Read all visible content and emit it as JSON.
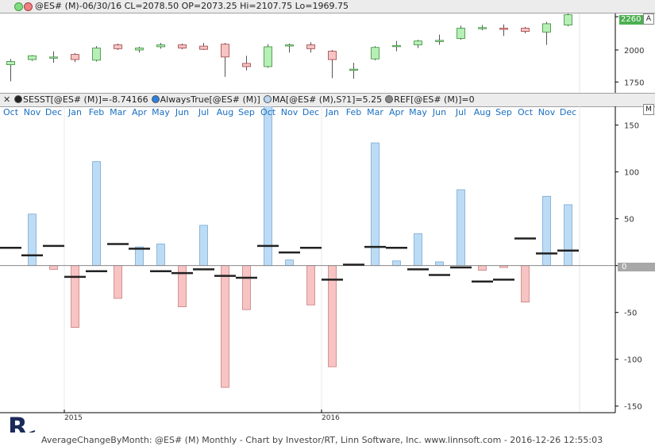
{
  "top_panel": {
    "title": "@ES# (M)-06/30/16 CL=2078.50 OP=2073.25 Hi=2107.75 Lo=1969.75",
    "price_badge": "2260",
    "corner_label": "A",
    "dot_colors": [
      "#7fdc7f",
      "#f08080"
    ]
  },
  "indicator_panel": {
    "legend": [
      {
        "text": "SESST[@ES# (M)]=-8.74166",
        "color": "#222222"
      },
      {
        "text": "AlwaysTrue[@ES# (M)]",
        "color": "#2f7fdc"
      },
      {
        "text": "MA[@ES# (M),S?1]=5.25",
        "color": "#b8d8f4"
      },
      {
        "text": "REF[@ES# (M)]=0",
        "color": "#888888"
      }
    ],
    "corner_label": "M",
    "zero_badge": "0"
  },
  "footer": {
    "text": "AverageChangeByMonth: @ES# (M) Monthly - Chart by Investor/RT, Linn Software, Inc. www.linnsoft.com - 2016-12-26 12:55:03"
  },
  "chart_data": [
    {
      "type": "candlestick",
      "y_ticks": [
        1750,
        2000,
        2260
      ],
      "ylim": [
        1665,
        2285
      ],
      "candles": [
        {
          "o": 1885,
          "h": 1930,
          "l": 1755,
          "c": 1910
        },
        {
          "o": 1925,
          "h": 1960,
          "l": 1915,
          "c": 1955
        },
        {
          "o": 1945,
          "h": 1990,
          "l": 1900,
          "c": 1945
        },
        {
          "o": 1965,
          "h": 1975,
          "l": 1905,
          "c": 1925
        },
        {
          "o": 1920,
          "h": 2030,
          "l": 1910,
          "c": 2015
        },
        {
          "o": 2040,
          "h": 2050,
          "l": 2000,
          "c": 2010
        },
        {
          "o": 2000,
          "h": 2025,
          "l": 1980,
          "c": 2015
        },
        {
          "o": 2025,
          "h": 2055,
          "l": 2010,
          "c": 2040
        },
        {
          "o": 2040,
          "h": 2050,
          "l": 2005,
          "c": 2015
        },
        {
          "o": 2030,
          "h": 2055,
          "l": 2000,
          "c": 2005
        },
        {
          "o": 2045,
          "h": 2055,
          "l": 1790,
          "c": 1945
        },
        {
          "o": 1895,
          "h": 1955,
          "l": 1840,
          "c": 1870
        },
        {
          "o": 1870,
          "h": 2045,
          "l": 1860,
          "c": 2025
        },
        {
          "o": 2040,
          "h": 2050,
          "l": 1980,
          "c": 2040
        },
        {
          "o": 2040,
          "h": 2060,
          "l": 1980,
          "c": 2010
        },
        {
          "o": 1990,
          "h": 2000,
          "l": 1780,
          "c": 1925
        },
        {
          "o": 1850,
          "h": 1900,
          "l": 1775,
          "c": 1850
        },
        {
          "o": 1930,
          "h": 2030,
          "l": 1920,
          "c": 2020
        },
        {
          "o": 2030,
          "h": 2070,
          "l": 1990,
          "c": 2035
        },
        {
          "o": 2040,
          "h": 2080,
          "l": 2015,
          "c": 2070
        },
        {
          "o": 2070,
          "h": 2120,
          "l": 2040,
          "c": 2075
        },
        {
          "o": 2090,
          "h": 2190,
          "l": 2080,
          "c": 2170
        },
        {
          "o": 2170,
          "h": 2195,
          "l": 2155,
          "c": 2175
        },
        {
          "o": 2170,
          "h": 2200,
          "l": 2110,
          "c": 2165
        },
        {
          "o": 2170,
          "h": 2180,
          "l": 2130,
          "c": 2145
        },
        {
          "o": 2140,
          "h": 2220,
          "l": 2040,
          "c": 2205
        },
        {
          "o": 2195,
          "h": 2300,
          "l": 2185,
          "c": 2275
        }
      ]
    },
    {
      "type": "bar",
      "title": "AverageChangeByMonth",
      "categories": [
        "Oct",
        "Nov",
        "Dec",
        "Jan",
        "Feb",
        "Mar",
        "Apr",
        "May",
        "Jun",
        "Jul",
        "Aug",
        "Sep",
        "Oct",
        "Nov",
        "Dec",
        "Jan",
        "Feb",
        "Mar",
        "Apr",
        "May",
        "Jun",
        "Jul",
        "Aug",
        "Sep",
        "Oct",
        "Nov",
        "Dec"
      ],
      "x_year_labels": [
        {
          "label": "2015",
          "index": 3
        },
        {
          "label": "2016",
          "index": 15
        }
      ],
      "y_ticks": [
        150,
        100,
        50,
        0,
        -50,
        -100,
        -150
      ],
      "ylim": [
        -157,
        170
      ],
      "series": [
        {
          "name": "SESST[@ES# (M)]",
          "values": [
            0,
            55,
            -4,
            -66,
            111,
            -35,
            20,
            23,
            -44,
            43,
            -130,
            -47,
            170,
            6,
            -42,
            -108,
            0,
            131,
            5,
            34,
            4,
            81,
            -5,
            -2,
            -39,
            74,
            65
          ]
        },
        {
          "name": "MA[@ES# (M),S?1]",
          "type": "step",
          "values": [
            19,
            11,
            21,
            -12,
            -6,
            23,
            18,
            -6,
            -8,
            -4,
            -11,
            -13,
            21,
            14,
            19,
            -15,
            1,
            20,
            19,
            -4,
            -10,
            -2,
            -17,
            -15,
            29,
            13,
            16
          ]
        }
      ]
    }
  ]
}
